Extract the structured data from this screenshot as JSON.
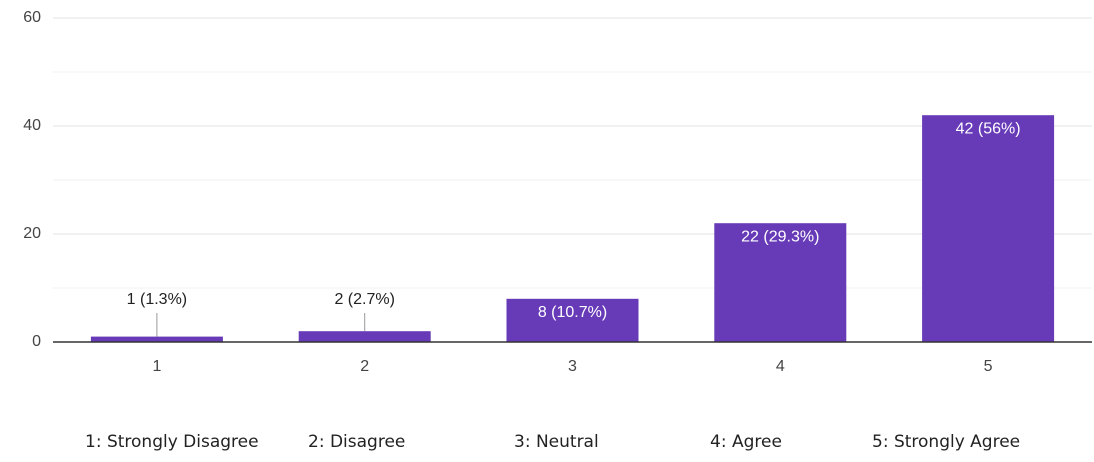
{
  "chart_data": {
    "type": "bar",
    "categories": [
      "1",
      "2",
      "3",
      "4",
      "5"
    ],
    "values": [
      1,
      2,
      8,
      22,
      42
    ],
    "value_labels": [
      "1 (1.3%)",
      "2 (2.7%)",
      "8 (10.7%)",
      "22 (29.3%)",
      "42 (56%)"
    ],
    "color": "#673ab7",
    "ylim": [
      0,
      60
    ],
    "yticks": [
      0,
      20,
      40,
      60
    ],
    "minor_yticks": [
      10,
      30,
      50
    ],
    "grid": true,
    "scale_labels": [
      "1: Strongly Disagree",
      "2: Disagree",
      "3: Neutral",
      "4: Agree",
      "5: Strongly Agree"
    ]
  }
}
